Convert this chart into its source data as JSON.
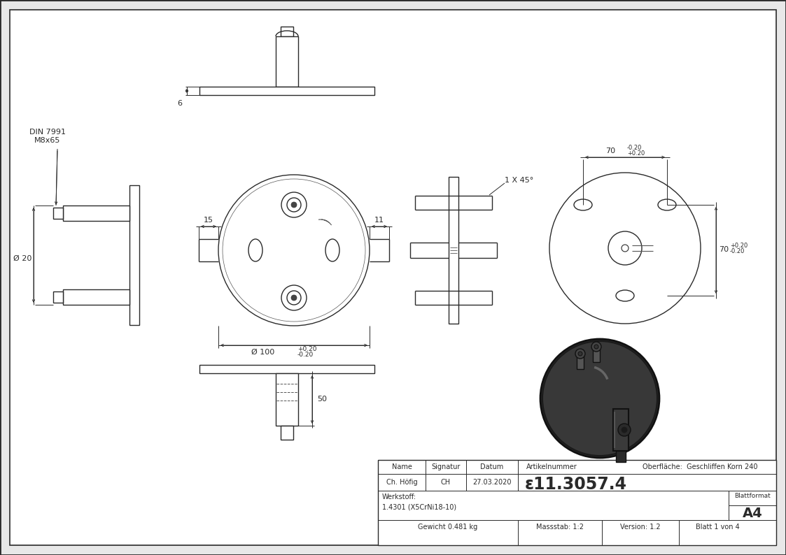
{
  "bg_color": "#e8e8e8",
  "line_color": "#2a2a2a",
  "dim_color": "#2a2a2a",
  "table": {
    "name_label": "Name",
    "signatur_label": "Signatur",
    "datum_label": "Datum",
    "artikelnummer_label": "Artikelnummer",
    "oberflaeche_label": "Oberfläche:  Geschliffen Korn 240",
    "name_val": "Ch. Höfig",
    "signatur_val": "CH",
    "datum_val": "27.03.2020",
    "artikelnummer_val": "ε11.3057.4",
    "werkstoff_label": "Werkstoff:",
    "werkstoff_val": "1.4301 (X5CrNi18-10)",
    "gewicht_label": "Gewicht 0.481 kg",
    "massstab_label": "Massstab: 1:2",
    "version_label": "Version: 1.2",
    "blatt_label": "Blatt 1 von 4",
    "blattformat_label": "Blattformat",
    "blattformat_val": "A4"
  },
  "dims": {
    "d100": "Ø 100",
    "d20": "Ø 20",
    "dim_6": "6",
    "dim_15": "15",
    "dim_11": "11",
    "dim_50": "50",
    "dim_70": "70",
    "chamfer": "1 X 45°",
    "din_label": "DIN 7991\nM8x65"
  }
}
